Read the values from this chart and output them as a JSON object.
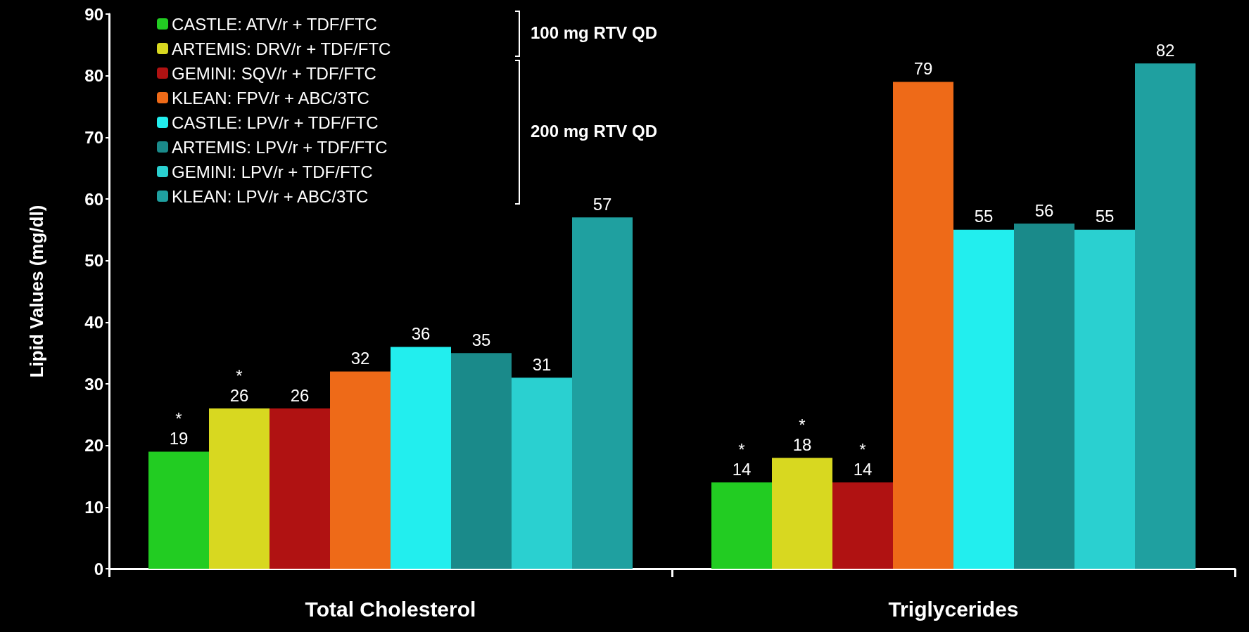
{
  "chart_data": {
    "type": "bar",
    "ylabel": "Lipid Values (mg/dl)",
    "categories": [
      "Total Cholesterol",
      "Triglycerides"
    ],
    "series": [
      {
        "name": "CASTLE: ATV/r + TDF/FTC",
        "color": "#22cc22",
        "values": [
          19,
          14
        ],
        "value_labels": [
          "*\n19",
          "*\n14"
        ]
      },
      {
        "name": "ARTEMIS: DRV/r + TDF/FTC",
        "color": "#d8d820",
        "values": [
          26,
          18
        ],
        "value_labels": [
          "*\n26",
          "*\n18"
        ]
      },
      {
        "name": "GEMINI: SQV/r + TDF/FTC",
        "color": "#b01212",
        "values": [
          26,
          14
        ],
        "value_labels": [
          "26",
          "*\n14"
        ]
      },
      {
        "name": "KLEAN: FPV/r + ABC/3TC",
        "color": "#ee6a18",
        "values": [
          32,
          79
        ]
      },
      {
        "name": "CASTLE: LPV/r + TDF/FTC",
        "color": "#22eeee",
        "values": [
          36,
          55
        ]
      },
      {
        "name": "ARTEMIS: LPV/r + TDF/FTC",
        "color": "#1a8a8a",
        "values": [
          35,
          56
        ]
      },
      {
        "name": "GEMINI: LPV/r + TDF/FTC",
        "color": "#2ad0d0",
        "values": [
          31,
          55
        ]
      },
      {
        "name": "KLEAN: LPV/r + ABC/3TC",
        "color": "#1fa0a0",
        "values": [
          57,
          82
        ]
      }
    ],
    "ylim": [
      0,
      90
    ],
    "yticks": [
      0,
      10,
      20,
      30,
      40,
      50,
      60,
      70,
      80,
      90
    ],
    "grid": false,
    "legend": "top left",
    "data_labels": true,
    "annotations": [
      "100 mg RTV QD",
      "200 mg RTV QD"
    ]
  }
}
